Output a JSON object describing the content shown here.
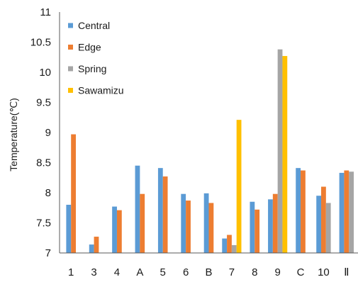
{
  "chart_data": {
    "type": "bar",
    "title": "",
    "xlabel": "",
    "ylabel": "Temperature(℃)",
    "ylim": [
      7,
      11
    ],
    "yticks": [
      "7",
      "7.5",
      "8",
      "8.5",
      "9",
      "9.5",
      "10",
      "10.5",
      "11"
    ],
    "grid": false,
    "legend_position": "top-left",
    "categories": [
      "1",
      "3",
      "4",
      "A",
      "5",
      "6",
      "B",
      "7",
      "8",
      "9",
      "C",
      "10",
      "Ⅱ"
    ],
    "series": [
      {
        "name": "Central",
        "color": "#5B9BD5",
        "values": [
          7.8,
          7.14,
          7.77,
          8.45,
          8.41,
          7.98,
          7.99,
          7.24,
          7.85,
          7.89,
          8.41,
          7.95,
          8.33
        ]
      },
      {
        "name": "Edge",
        "color": "#ED7D31",
        "values": [
          8.97,
          7.27,
          7.71,
          7.98,
          8.27,
          7.87,
          7.83,
          7.3,
          7.72,
          7.98,
          8.37,
          8.1,
          8.37
        ]
      },
      {
        "name": "Spring",
        "color": "#A5A5A5",
        "values": [
          null,
          null,
          null,
          null,
          null,
          null,
          null,
          7.13,
          null,
          10.38,
          null,
          7.83,
          8.35
        ]
      },
      {
        "name": "Sawamizu",
        "color": "#FFC000",
        "values": [
          null,
          null,
          null,
          null,
          null,
          null,
          null,
          9.21,
          null,
          10.27,
          null,
          null,
          null
        ]
      }
    ]
  }
}
